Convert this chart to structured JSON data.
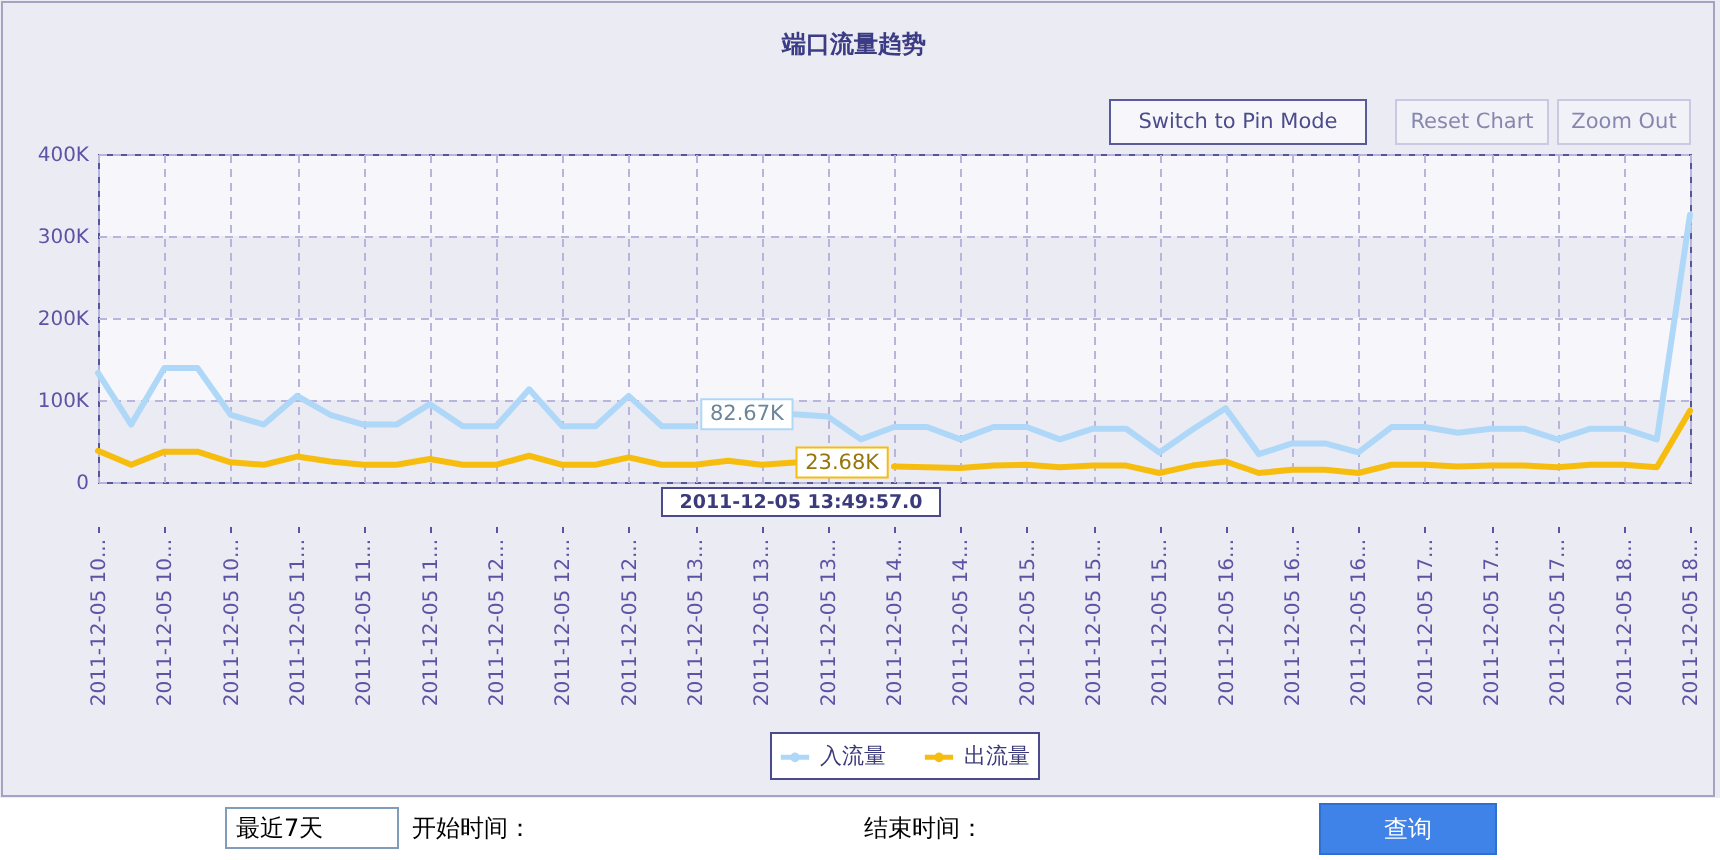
{
  "chart_data": {
    "type": "line",
    "title": "端口流量趋势",
    "categories": [
      "2011-12-05 10...",
      null,
      "2011-12-05 10...",
      null,
      "2011-12-05 10...",
      null,
      "2011-12-05 11...",
      null,
      "2011-12-05 11...",
      null,
      "2011-12-05 11...",
      null,
      "2011-12-05 12...",
      null,
      "2011-12-05 12...",
      null,
      "2011-12-05 12...",
      null,
      "2011-12-05 13...",
      null,
      "2011-12-05 13...",
      null,
      "2011-12-05 13...",
      null,
      "2011-12-05 14...",
      null,
      "2011-12-05 14...",
      null,
      "2011-12-05 15...",
      null,
      "2011-12-05 15...",
      null,
      "2011-12-05 15...",
      null,
      "2011-12-05 16...",
      null,
      "2011-12-05 16...",
      null,
      "2011-12-05 16...",
      null,
      "2011-12-05 17...",
      null,
      "2011-12-05 17...",
      null,
      "2011-12-05 17...",
      null,
      "2011-12-05 18...",
      null,
      "2011-12-05 18..."
    ],
    "series": [
      {
        "name": "入流量",
        "color": "#afd8f8",
        "values": [
          133000,
          70000,
          139000,
          139000,
          82000,
          70000,
          105000,
          82000,
          70000,
          70000,
          95000,
          68000,
          68000,
          113000,
          68000,
          68000,
          105000,
          68000,
          68000,
          null,
          null,
          82670,
          80000,
          52000,
          67000,
          67000,
          52000,
          67000,
          67000,
          52000,
          65000,
          65000,
          36000,
          64000,
          90000,
          34000,
          47000,
          47000,
          36000,
          67000,
          67000,
          60000,
          65000,
          65000,
          52000,
          65000,
          65000,
          52000,
          326000
        ],
        "value_labels": [
          null,
          null,
          null,
          null,
          null,
          null,
          null,
          null,
          null,
          null,
          null,
          null,
          null,
          null,
          null,
          null,
          null,
          null,
          null,
          null,
          null,
          "82.67K",
          null,
          null,
          null,
          null,
          null,
          null,
          null,
          null,
          null,
          null,
          null,
          null,
          null,
          null,
          null,
          null,
          null,
          null,
          null,
          null,
          null,
          null,
          null,
          null,
          null,
          null,
          null
        ]
      },
      {
        "name": "出流量",
        "color": "#f6bd0f",
        "values": [
          38000,
          21000,
          37000,
          37000,
          24000,
          21000,
          31000,
          25000,
          21000,
          21000,
          28000,
          21000,
          21000,
          32000,
          21000,
          21000,
          30000,
          21000,
          21000,
          26000,
          21000,
          23680,
          null,
          null,
          19000,
          18000,
          17000,
          20000,
          21000,
          18000,
          20000,
          20000,
          11000,
          20000,
          25000,
          11000,
          15000,
          15000,
          11000,
          21000,
          21000,
          19000,
          20000,
          20000,
          18000,
          21000,
          21000,
          18000,
          87000
        ],
        "value_labels": [
          null,
          null,
          null,
          null,
          null,
          null,
          null,
          null,
          null,
          null,
          null,
          null,
          null,
          null,
          null,
          null,
          null,
          null,
          null,
          null,
          null,
          "23.68K",
          null,
          null,
          null,
          null,
          null,
          null,
          null,
          null,
          null,
          null,
          null,
          null,
          null,
          null,
          null,
          null,
          null,
          null,
          null,
          null,
          null,
          null,
          null,
          null,
          null,
          null,
          null
        ]
      }
    ],
    "ylim": [
      0,
      400000
    ],
    "yticks": [
      0,
      {
        "value": 100000,
        "label": "100K"
      },
      {
        "value": 200000,
        "label": "200K"
      },
      {
        "value": 300000,
        "label": "300K"
      },
      {
        "value": 400000,
        "label": "400K"
      }
    ],
    "grid": true,
    "legend": "bottom",
    "bands": [
      {
        "axis": "y",
        "from": 0,
        "to": 100000,
        "color": "#ebebf4"
      },
      {
        "axis": "y",
        "from": 200000,
        "to": 300000,
        "color": "#ebebf4"
      }
    ],
    "annotations": [
      "Switch to Pin Mode",
      "Reset Chart",
      "Zoom Out",
      "2011-12-05 13:49:57.0",
      "最近7天",
      "开始时间：",
      "结束时间：",
      "查询"
    ]
  }
}
